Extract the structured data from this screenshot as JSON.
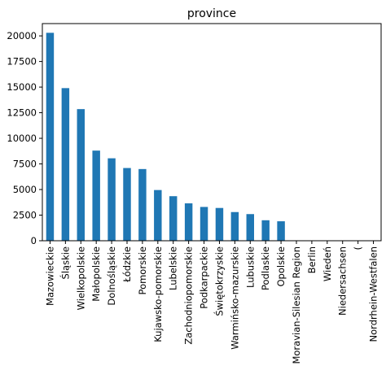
{
  "chart_data": {
    "type": "bar",
    "title": "province",
    "xlabel": "",
    "ylabel": "",
    "categories": [
      "Mazowieckie",
      "Śląskie",
      "Wielkopolskie",
      "Małopolskie",
      "Dolnośląskie",
      "Łódzkie",
      "Pomorskie",
      "Kujawsko-pomorskie",
      "Lubelskie",
      "Zachodniopomorskie",
      "Podkarpackie",
      "Świętokrzyskie",
      "Warmińsko-mazurskie",
      "Lubuskie",
      "Podlaskie",
      "Opolskie",
      "Moravian-Silesian Region",
      "Berlin",
      "Wiedeń",
      "Niedersachsen",
      "(",
      "Nordrhein-Westfalen"
    ],
    "values": [
      20300,
      14900,
      12850,
      8800,
      8050,
      7100,
      7000,
      4950,
      4350,
      3650,
      3300,
      3200,
      2800,
      2600,
      2000,
      1900,
      5,
      3,
      2,
      2,
      1,
      1
    ],
    "ylim": [
      0,
      21200
    ],
    "yticks": [
      0,
      2500,
      5000,
      7500,
      10000,
      12500,
      15000,
      17500,
      20000
    ],
    "ytick_labels": [
      "0",
      "2500",
      "5000",
      "7500",
      "10000",
      "12500",
      "15000",
      "17500",
      "20000"
    ],
    "bar_color": "#1f77b4",
    "grid": false,
    "legend": "none"
  }
}
